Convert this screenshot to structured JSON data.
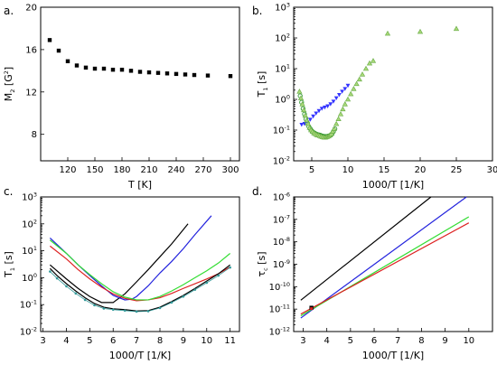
{
  "panel_labels": [
    "a.",
    "b.",
    "c.",
    "d."
  ],
  "chart_data": [
    {
      "type": "scatter",
      "panel": "a.",
      "xlabel": "T [K]",
      "ylabel_main": "M",
      "ylabel_sub": "2",
      "ylabel_unit_pre": " [G",
      "ylabel_unit_sup": "2",
      "ylabel_unit_post": "]",
      "xlim": [
        90,
        310
      ],
      "ylim": [
        5.5,
        20
      ],
      "xticks": [
        "120",
        "150",
        "180",
        "210",
        "240",
        "270",
        "300"
      ],
      "xtick_values": [
        120,
        150,
        180,
        210,
        240,
        270,
        300
      ],
      "yticks": [
        "8",
        "12",
        "16",
        "20"
      ],
      "ytick_values": [
        8,
        12,
        16,
        20
      ],
      "series": [
        {
          "color": "#000000",
          "marker": "square",
          "x": [
            100,
            110,
            120,
            130,
            140,
            150,
            160,
            170,
            180,
            190,
            200,
            210,
            220,
            230,
            240,
            250,
            260,
            275,
            300
          ],
          "y": [
            16.9,
            15.9,
            14.9,
            14.5,
            14.3,
            14.2,
            14.2,
            14.1,
            14.1,
            14.0,
            13.9,
            13.85,
            13.8,
            13.75,
            13.7,
            13.65,
            13.6,
            13.55,
            13.5
          ]
        }
      ]
    },
    {
      "type": "scatter",
      "panel": "b.",
      "xlabel": "1000/T [1/K]",
      "ylabel_main": "T",
      "ylabel_sub": "1",
      "ylabel_unit_pre": " [s]",
      "ylabel_unit_sup": "",
      "ylabel_unit_post": "",
      "xscale": "linear",
      "yscale": "log",
      "xlim": [
        2.5,
        30
      ],
      "ylim": [
        -2,
        3
      ],
      "xticks": [
        "5",
        "10",
        "15",
        "20",
        "25",
        "30"
      ],
      "xtick_values": [
        5,
        10,
        15,
        20,
        25,
        30
      ],
      "ytick_values": [
        -2,
        -1,
        0,
        1,
        2,
        3
      ],
      "series": [
        {
          "color": "#3333ff",
          "marker": "triangle-down",
          "x": [
            3.6,
            4.0,
            4.4,
            4.8,
            5.2,
            5.6,
            6.0,
            6.4,
            6.8,
            7.2,
            7.6,
            8.0,
            8.4,
            8.8,
            9.2,
            9.6,
            10.0
          ],
          "y": [
            0.15,
            0.16,
            0.18,
            0.22,
            0.28,
            0.35,
            0.42,
            0.5,
            0.55,
            0.6,
            0.7,
            0.85,
            1.1,
            1.4,
            1.8,
            2.2,
            2.8
          ]
        },
        {
          "color": "#339933",
          "marker": "circle-open",
          "x": [
            3.4,
            3.6,
            3.8,
            4.0,
            4.2,
            4.4,
            4.6,
            4.8,
            5.0,
            5.2,
            5.4,
            5.6,
            5.8,
            6.0,
            6.2,
            6.4,
            6.6,
            6.8,
            7.0,
            7.2,
            7.4,
            7.6,
            7.8,
            8.0,
            8.2
          ],
          "y": [
            1.3,
            0.8,
            0.5,
            0.33,
            0.23,
            0.17,
            0.13,
            0.11,
            0.095,
            0.085,
            0.08,
            0.075,
            0.072,
            0.07,
            0.068,
            0.065,
            0.063,
            0.062,
            0.062,
            0.063,
            0.065,
            0.068,
            0.075,
            0.09,
            0.11
          ]
        },
        {
          "color": "#66aa44",
          "marker": "triangle-up",
          "x": [
            3.3,
            3.5,
            3.7,
            3.9,
            4.1,
            4.3,
            4.5,
            4.7,
            4.9,
            5.1,
            5.3,
            5.5,
            5.7,
            5.9,
            6.1,
            6.3,
            6.5,
            6.7,
            6.9,
            7.1,
            7.3,
            7.5,
            7.7,
            7.9,
            8.1,
            8.4,
            8.7,
            9.0,
            9.3,
            9.6,
            10.0,
            10.4,
            10.8,
            11.2,
            11.6,
            12.0,
            12.5,
            13.0,
            13.5,
            15.5,
            20.0,
            25.0
          ],
          "y": [
            1.8,
            1.1,
            0.7,
            0.45,
            0.3,
            0.21,
            0.16,
            0.12,
            0.1,
            0.09,
            0.08,
            0.075,
            0.07,
            0.068,
            0.065,
            0.062,
            0.06,
            0.058,
            0.058,
            0.06,
            0.063,
            0.068,
            0.075,
            0.09,
            0.11,
            0.16,
            0.23,
            0.33,
            0.48,
            0.7,
            1.0,
            1.5,
            2.2,
            3.2,
            4.5,
            6.5,
            10.0,
            15.0,
            18.0,
            140.0,
            160.0,
            200.0
          ]
        }
      ]
    },
    {
      "type": "line",
      "panel": "c.",
      "xlabel": "1000/T [1/K]",
      "ylabel_main": "T",
      "ylabel_sub": "1",
      "ylabel_unit_pre": " [s]",
      "ylabel_unit_sup": "",
      "ylabel_unit_post": "",
      "yscale": "log",
      "xlim": [
        2.9,
        11.4
      ],
      "ylim": [
        -2,
        3
      ],
      "xticks": [
        "3",
        "4",
        "5",
        "6",
        "7",
        "8",
        "9",
        "10",
        "11"
      ],
      "xtick_values": [
        3,
        4,
        5,
        6,
        7,
        8,
        9,
        10,
        11
      ],
      "ytick_values": [
        -2,
        -1,
        0,
        1,
        2,
        3
      ],
      "series": [
        {
          "color": "#000000",
          "x": [
            3.3,
            4.0,
            4.5,
            5.0,
            5.5,
            6.0,
            6.5,
            7.0,
            7.5,
            8.0,
            8.5,
            9.2
          ],
          "y": [
            3.0,
            0.9,
            0.4,
            0.2,
            0.12,
            0.12,
            0.25,
            0.7,
            2.0,
            6.0,
            18.0,
            100.0
          ]
        },
        {
          "color": "#2222dd",
          "x": [
            3.3,
            4.0,
            4.5,
            5.0,
            5.5,
            6.0,
            6.5,
            6.8,
            7.0,
            7.5,
            8.0,
            8.5,
            9.0,
            9.5,
            10.2
          ],
          "y": [
            30.0,
            8.0,
            3.0,
            1.2,
            0.5,
            0.22,
            0.15,
            0.16,
            0.2,
            0.5,
            1.5,
            4.0,
            12.0,
            40.0,
            200.0
          ]
        },
        {
          "color": "#dd2222",
          "x": [
            3.3,
            4.0,
            4.5,
            5.0,
            5.5,
            6.0,
            6.5,
            7.0,
            7.5,
            8.0,
            8.5,
            9.0,
            9.5,
            10.0,
            10.5,
            11.0
          ],
          "y": [
            15.0,
            5.0,
            2.0,
            0.9,
            0.45,
            0.25,
            0.17,
            0.14,
            0.15,
            0.18,
            0.26,
            0.4,
            0.6,
            0.9,
            1.4,
            2.5
          ]
        },
        {
          "color": "#33dd33",
          "x": [
            3.3,
            4.0,
            4.5,
            5.0,
            5.5,
            6.0,
            6.5,
            7.0,
            7.5,
            8.0,
            8.5,
            9.0,
            9.5,
            10.0,
            10.5,
            11.0
          ],
          "y": [
            25.0,
            8.0,
            3.0,
            1.3,
            0.6,
            0.3,
            0.19,
            0.15,
            0.15,
            0.2,
            0.32,
            0.55,
            1.0,
            1.8,
            3.5,
            8.0
          ]
        },
        {
          "color": "#000000",
          "x": [
            3.3,
            3.6,
            4.0,
            4.4,
            4.8,
            5.2,
            5.6,
            6.0,
            6.5,
            7.0,
            7.5,
            8.0,
            8.5,
            9.0,
            9.5,
            10.0,
            10.5,
            11.0
          ],
          "y": [
            2.2,
            1.2,
            0.6,
            0.32,
            0.18,
            0.11,
            0.08,
            0.07,
            0.065,
            0.058,
            0.06,
            0.08,
            0.13,
            0.22,
            0.4,
            0.75,
            1.4,
            3.0
          ]
        },
        {
          "color": "#339999",
          "marker": "small-dot",
          "x": [
            3.3,
            3.6,
            4.0,
            4.4,
            4.8,
            5.2,
            5.6,
            6.0,
            6.5,
            7.0,
            7.5,
            8.0,
            8.5,
            9.0,
            9.5,
            10.0,
            10.5,
            11.0
          ],
          "y": [
            1.7,
            0.95,
            0.48,
            0.26,
            0.15,
            0.095,
            0.072,
            0.065,
            0.06,
            0.055,
            0.057,
            0.075,
            0.12,
            0.2,
            0.36,
            0.65,
            1.2,
            2.4
          ]
        }
      ]
    },
    {
      "type": "line",
      "panel": "d.",
      "xlabel": "1000/T [1/K]",
      "ylabel_main": "τ",
      "ylabel_sub": "c",
      "ylabel_unit_pre": " [s]",
      "ylabel_unit_sup": "",
      "ylabel_unit_post": "",
      "yscale": "log",
      "xlim": [
        2.6,
        11.0
      ],
      "ylim": [
        -12,
        -6
      ],
      "xticks": [
        "3",
        "4",
        "5",
        "6",
        "7",
        "8",
        "9",
        "10"
      ],
      "xtick_values": [
        3,
        4,
        5,
        6,
        7,
        8,
        9,
        10
      ],
      "ytick_values": [
        -12,
        -11,
        -10,
        -9,
        -8,
        -7,
        -6
      ],
      "series": [
        {
          "color": "#000000",
          "x": [
            2.9,
            8.4
          ],
          "y": [
            2.5e-11,
            1e-06
          ]
        },
        {
          "color": "#2222dd",
          "x": [
            2.9,
            9.9
          ],
          "y": [
            4e-12,
            1e-06
          ]
        },
        {
          "color": "#33dd33",
          "x": [
            2.9,
            10.0
          ],
          "y": [
            5e-12,
            1.3e-07
          ]
        },
        {
          "color": "#dd2222",
          "x": [
            2.9,
            10.0
          ],
          "y": [
            6e-12,
            7e-08
          ]
        },
        {
          "color": "#000000",
          "marker": "square",
          "x": [
            3.35
          ],
          "y": [
            1.15e-11
          ]
        },
        {
          "color": "#dd2222",
          "marker": "small-square",
          "x": [
            3.35
          ],
          "y": [
            1.05e-11
          ]
        }
      ]
    }
  ]
}
